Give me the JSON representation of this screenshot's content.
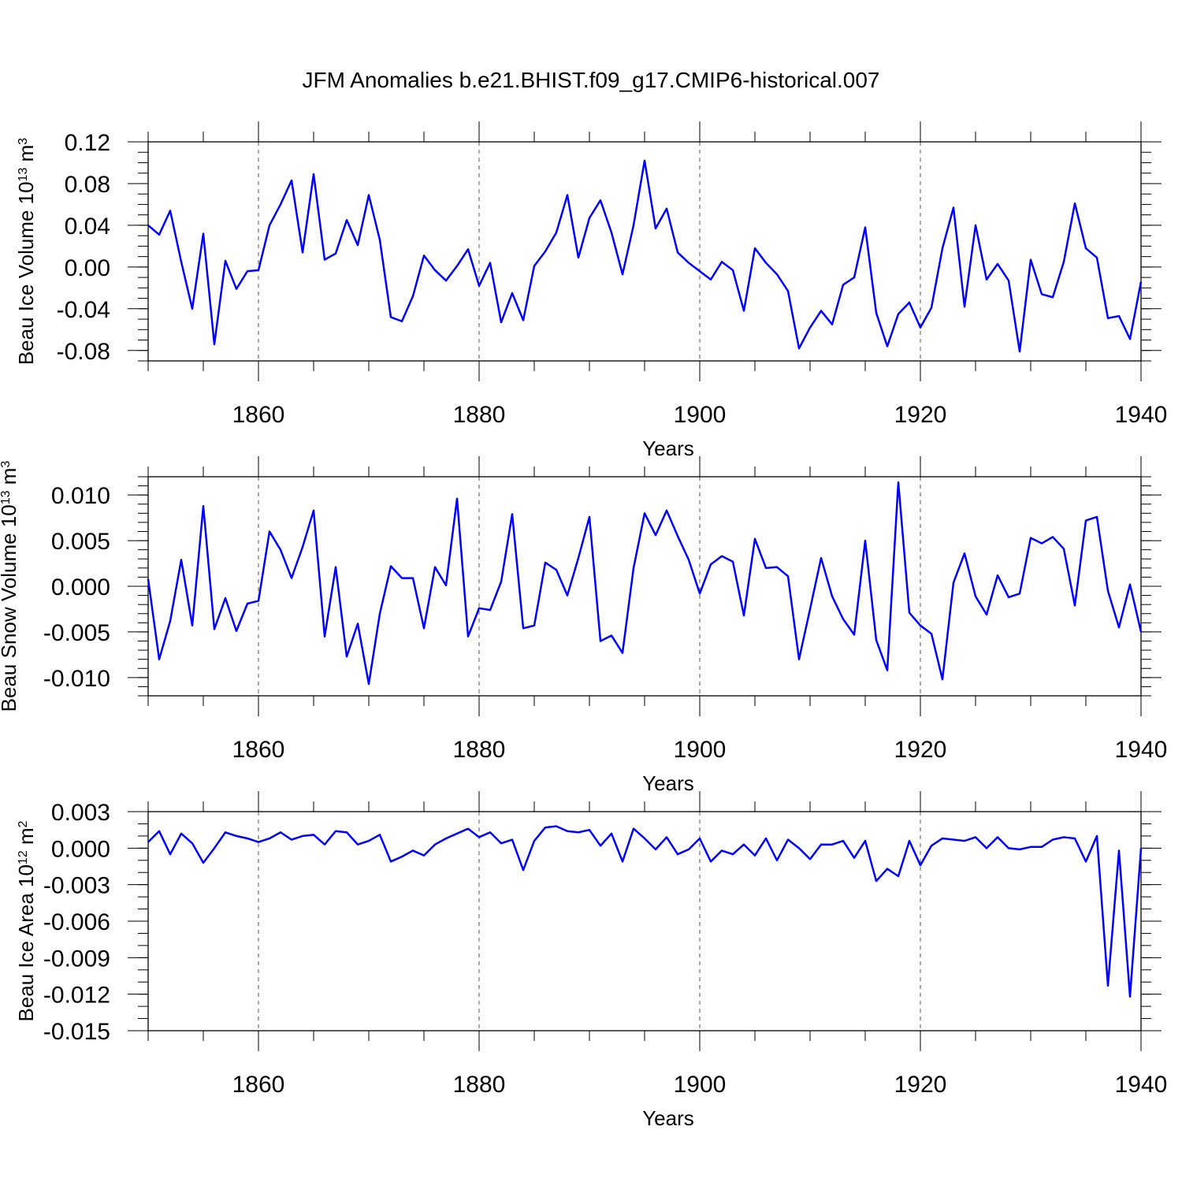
{
  "title": "JFM Anomalies b.e21.BHIST.f09_g17.CMIP6-historical.007",
  "line_color": "#0000ff",
  "chart_data": [
    {
      "type": "line",
      "title": "JFM Anomalies b.e21.BHIST.f09_g17.CMIP6-historical.007",
      "xlabel": "Years",
      "ylabel_main": "Beau Ice Volume 10",
      "ylabel_sup": "13",
      "ylabel_unit": " m",
      "ylabel_unit_sup": "3",
      "xlim": [
        1850,
        1940
      ],
      "ylim": [
        -0.09,
        0.12
      ],
      "xticks": [
        1860,
        1880,
        1900,
        1920,
        1940
      ],
      "xtick_labels": [
        "1860",
        "1880",
        "1900",
        "1920",
        "1940"
      ],
      "yticks": [
        -0.08,
        -0.04,
        0.0,
        0.04,
        0.08,
        0.12
      ],
      "ytick_labels": [
        "-0.08",
        "-0.04",
        "0.00",
        "0.04",
        "0.08",
        "0.12"
      ],
      "y_minor_step": 0.01,
      "x_start": 1850,
      "series": [
        {
          "name": "Beau Ice Volume",
          "values": [
            0.04,
            0.031,
            0.054,
            0.005,
            -0.04,
            0.032,
            -0.074,
            0.006,
            -0.021,
            -0.004,
            -0.003,
            0.04,
            0.06,
            0.083,
            0.014,
            0.089,
            0.007,
            0.013,
            0.045,
            0.021,
            0.069,
            0.026,
            -0.048,
            -0.052,
            -0.028,
            0.011,
            -0.003,
            -0.013,
            0.001,
            0.017,
            -0.018,
            0.004,
            -0.053,
            -0.025,
            -0.051,
            0.001,
            0.015,
            0.033,
            0.069,
            0.009,
            0.047,
            0.064,
            0.033,
            -0.007,
            0.04,
            0.102,
            0.037,
            0.056,
            0.014,
            0.004,
            -0.004,
            -0.012,
            0.005,
            -0.003,
            -0.042,
            0.018,
            0.004,
            -0.007,
            -0.023,
            -0.078,
            -0.058,
            -0.042,
            -0.055,
            -0.017,
            -0.01,
            0.038,
            -0.044,
            -0.076,
            -0.045,
            -0.034,
            -0.058,
            -0.039,
            0.018,
            0.057,
            -0.038,
            0.04,
            -0.012,
            0.003,
            -0.013,
            -0.081,
            0.007,
            -0.026,
            -0.029,
            0.005,
            0.061,
            0.018,
            0.009,
            -0.049,
            -0.047,
            -0.069,
            -0.014
          ]
        }
      ]
    },
    {
      "type": "line",
      "xlabel": "Years",
      "ylabel_main": "Beau Snow Volume 10",
      "ylabel_sup": "13",
      "ylabel_unit": " m",
      "ylabel_unit_sup": "3",
      "xlim": [
        1850,
        1940
      ],
      "ylim": [
        -0.012,
        0.012
      ],
      "xticks": [
        1860,
        1880,
        1900,
        1920,
        1940
      ],
      "xtick_labels": [
        "1860",
        "1880",
        "1900",
        "1920",
        "1940"
      ],
      "yticks": [
        -0.01,
        -0.005,
        0.0,
        0.005,
        0.01
      ],
      "ytick_labels": [
        "-0.010",
        "-0.005",
        "0.000",
        "0.005",
        "0.010"
      ],
      "y_minor_step": 0.001,
      "x_start": 1850,
      "series": [
        {
          "name": "Beau Snow Volume",
          "values": [
            0.0008,
            -0.008,
            -0.0038,
            0.0029,
            -0.0043,
            0.0088,
            -0.0047,
            -0.0013,
            -0.0049,
            -0.0019,
            -0.0016,
            0.006,
            0.004,
            0.0009,
            0.0043,
            0.0083,
            -0.0055,
            0.0021,
            -0.0077,
            -0.0041,
            -0.0107,
            -0.003,
            0.0022,
            0.0009,
            0.0009,
            -0.0046,
            0.0021,
            0.0001,
            0.0096,
            -0.0055,
            -0.0024,
            -0.0026,
            0.0005,
            0.0079,
            -0.0046,
            -0.0043,
            0.0026,
            0.0018,
            -0.001,
            0.0031,
            0.0076,
            -0.006,
            -0.0054,
            -0.0073,
            0.002,
            0.008,
            0.0056,
            0.0083,
            0.0055,
            0.0029,
            -0.0008,
            0.0024,
            0.0033,
            0.0027,
            -0.0032,
            0.0052,
            0.002,
            0.0021,
            0.0011,
            -0.008,
            -0.0025,
            0.0031,
            -0.0011,
            -0.0036,
            -0.0053,
            0.005,
            -0.0059,
            -0.0092,
            0.0114,
            -0.0029,
            -0.0043,
            -0.0052,
            -0.0102,
            0.0004,
            0.0036,
            -0.0011,
            -0.0031,
            0.0012,
            -0.0012,
            -0.0008,
            0.0053,
            0.0047,
            0.0054,
            0.0041,
            -0.0021,
            0.0072,
            0.0076,
            -0.0005,
            -0.0045,
            0.0002,
            -0.005
          ]
        }
      ]
    },
    {
      "type": "line",
      "xlabel": "Years",
      "ylabel_main": "Beau Ice Area 10",
      "ylabel_sup": "12",
      "ylabel_unit": " m",
      "ylabel_unit_sup": "2",
      "xlim": [
        1850,
        1940
      ],
      "ylim": [
        -0.015,
        0.003
      ],
      "xticks": [
        1860,
        1880,
        1900,
        1920,
        1940
      ],
      "xtick_labels": [
        "1860",
        "1880",
        "1900",
        "1920",
        "1940"
      ],
      "yticks": [
        -0.015,
        -0.012,
        -0.009,
        -0.006,
        -0.003,
        0.0,
        0.003
      ],
      "ytick_labels": [
        "-0.015",
        "-0.012",
        "-0.009",
        "-0.006",
        "-0.003",
        "0.000",
        "0.003"
      ],
      "y_minor_step": 0.001,
      "x_start": 1850,
      "series": [
        {
          "name": "Beau Ice Area",
          "values": [
            0.0005,
            0.0014,
            -0.0005,
            0.0012,
            0.0004,
            -0.0012,
            0.0,
            0.0013,
            0.001,
            0.0008,
            0.0005,
            0.0008,
            0.0013,
            0.0007,
            0.001,
            0.0011,
            0.0003,
            0.0014,
            0.0013,
            0.0003,
            0.0006,
            0.0011,
            -0.0011,
            -0.0007,
            -0.0002,
            -0.0006,
            0.0003,
            0.0008,
            0.0012,
            0.0016,
            0.0009,
            0.0013,
            0.0004,
            0.0007,
            -0.0018,
            0.0006,
            0.0017,
            0.0018,
            0.0014,
            0.0013,
            0.0015,
            0.0002,
            0.0012,
            -0.0011,
            0.0016,
            0.0008,
            -0.0001,
            0.0009,
            -0.0005,
            -0.0001,
            0.0008,
            -0.0011,
            -0.0002,
            -0.0005,
            0.0003,
            -0.0006,
            0.0008,
            -0.001,
            0.0007,
            0.0,
            -0.0009,
            0.0003,
            0.0003,
            0.0006,
            -0.0008,
            0.0006,
            -0.0027,
            -0.0017,
            -0.0023,
            0.0006,
            -0.0014,
            0.0002,
            0.0008,
            0.0007,
            0.0006,
            0.0009,
            0.0,
            0.0009,
            0.0,
            -0.0001,
            0.0001,
            0.0001,
            0.0007,
            0.0009,
            0.0008,
            -0.0011,
            0.001,
            -0.0113,
            -0.0002,
            -0.0122,
            0.0
          ]
        }
      ]
    }
  ]
}
